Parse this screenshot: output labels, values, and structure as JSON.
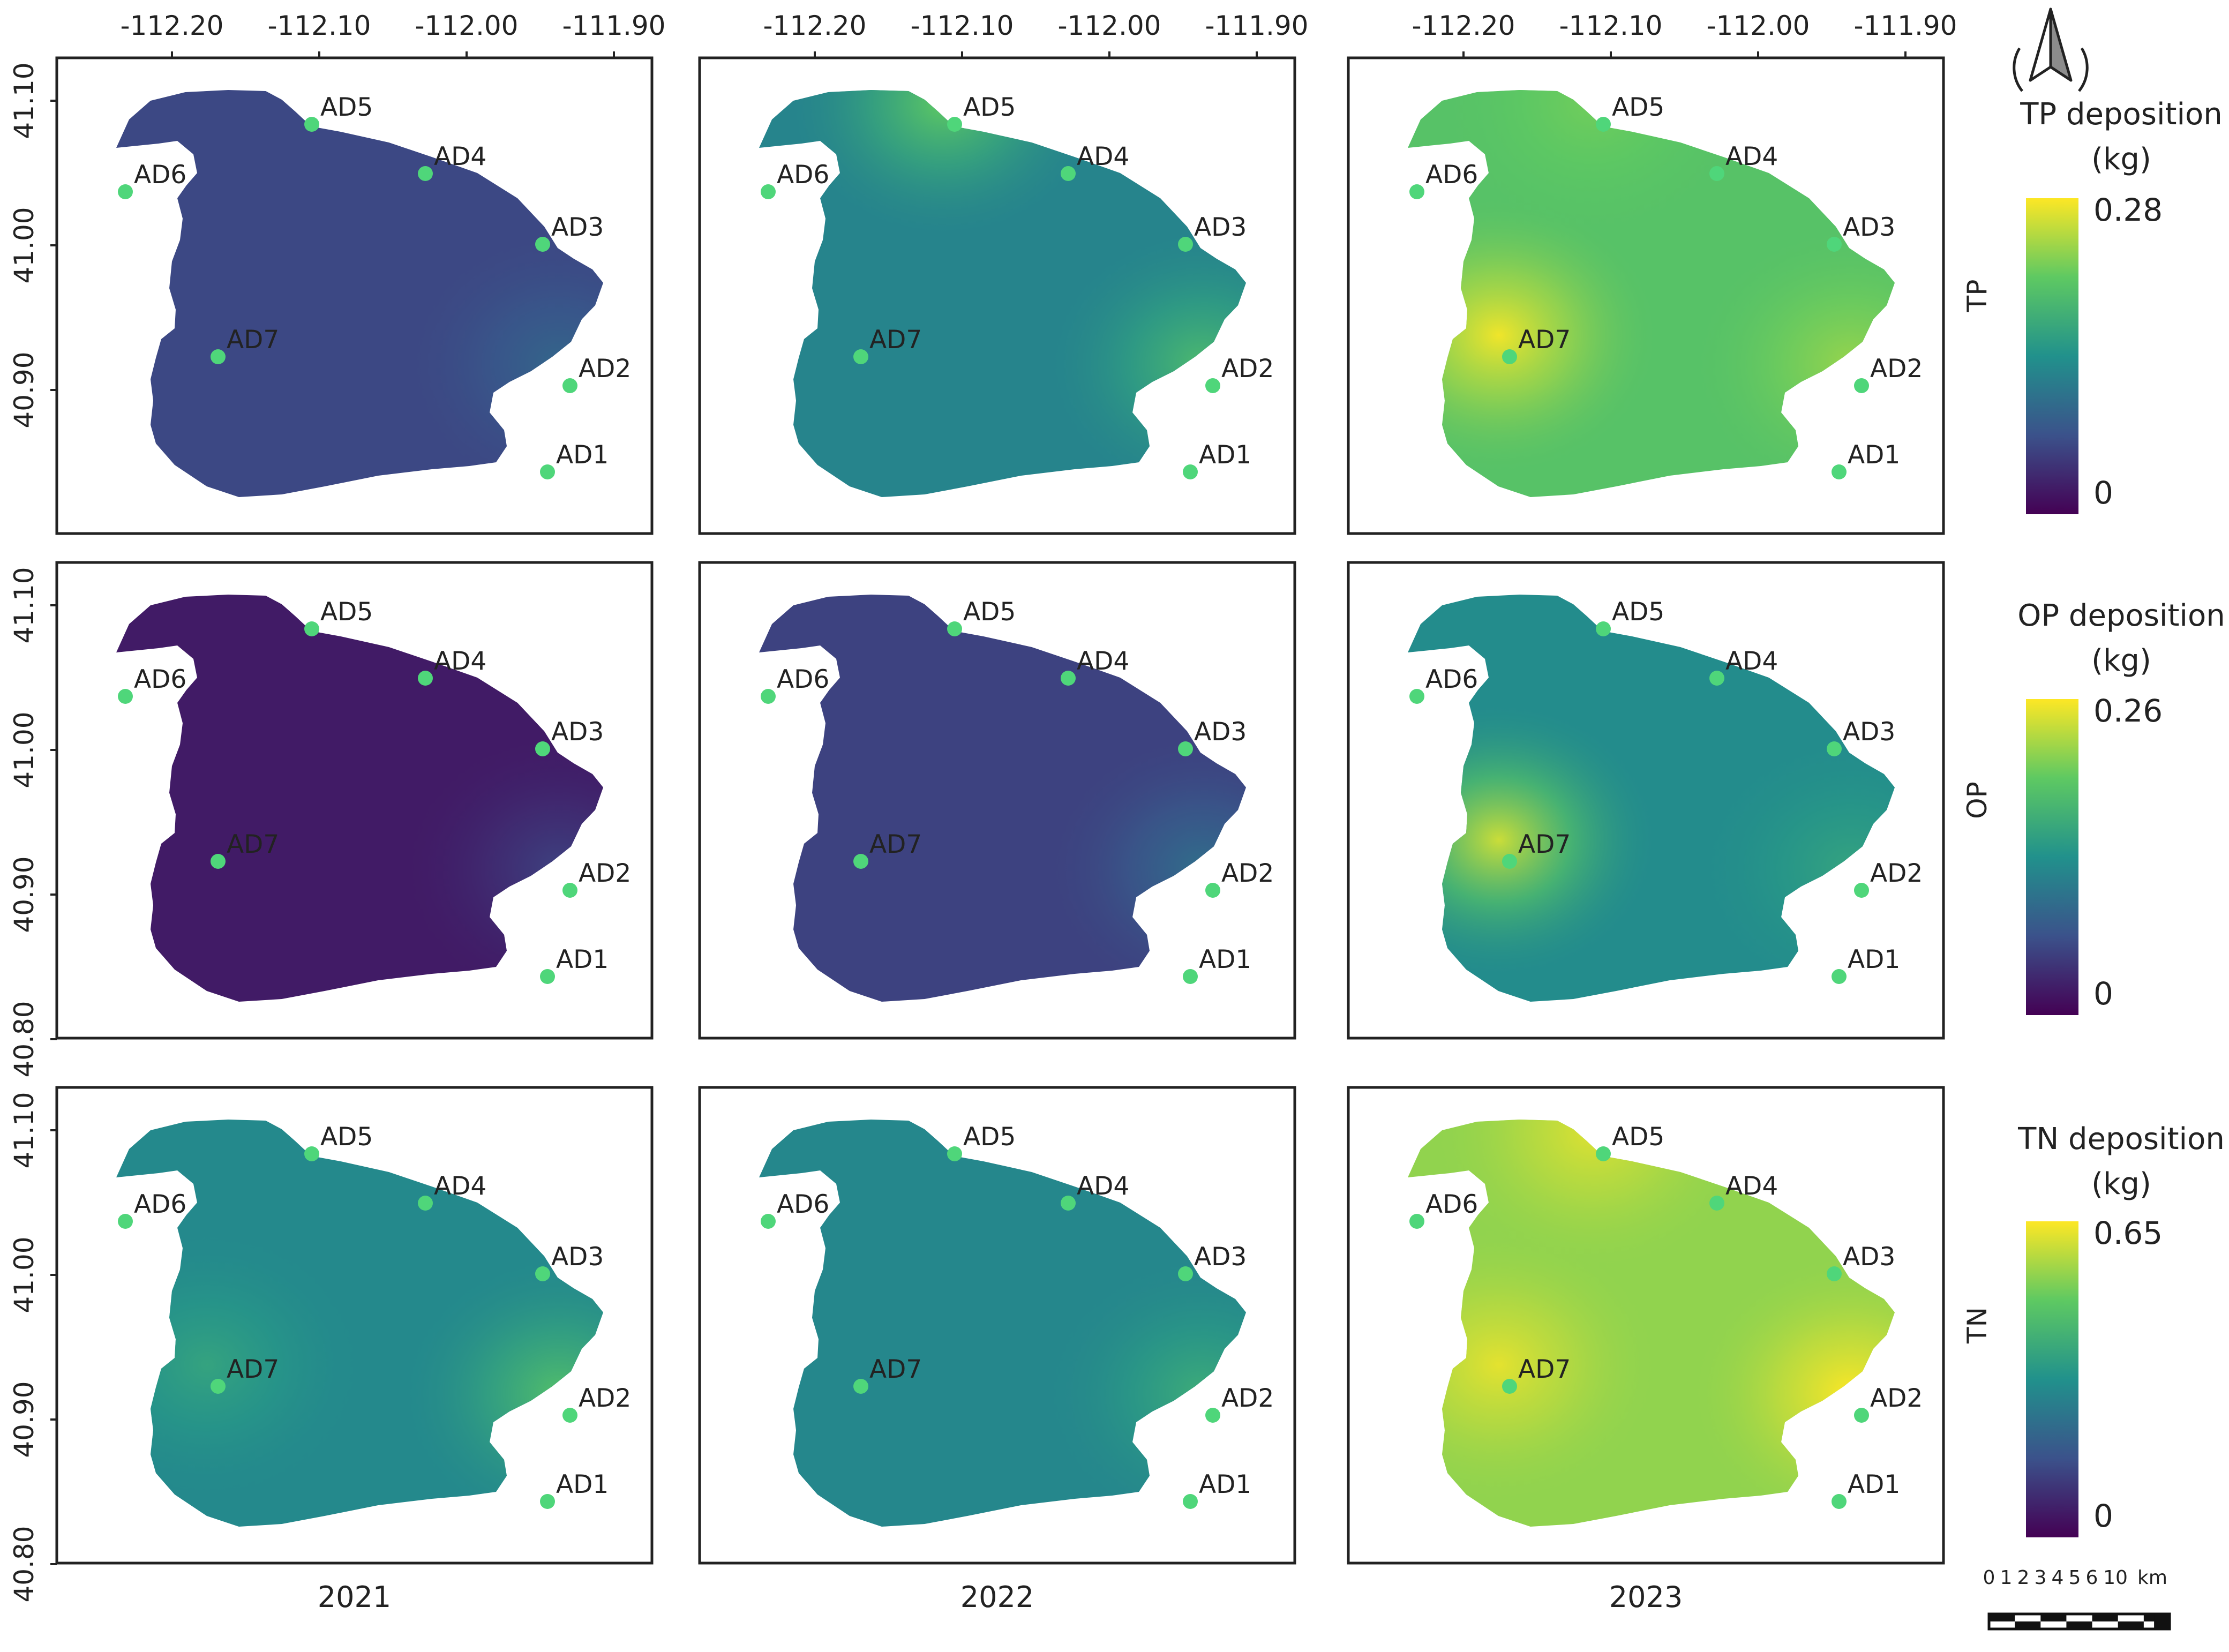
{
  "figure": {
    "years": [
      "2021",
      "2022",
      "2023"
    ],
    "longitude_ticks": [
      "-112.20",
      "-112.10",
      "-112.00",
      "-111.90"
    ],
    "latitude_ticks": [
      "41.10",
      "41.00",
      "40.90",
      "40.80"
    ],
    "rows": [
      {
        "id": "tp",
        "label": "TP",
        "legend_title_line1": "TP deposition",
        "legend_title_line2": "(kg)",
        "legend_max": "0.28",
        "legend_min": "0",
        "panel_levels": [
          0.22,
          0.45,
          0.72
        ],
        "hotspots": [
          [
            {
              "site": "AD2",
              "level": 0.33
            }
          ],
          [
            {
              "site": "AD2",
              "level": 0.68
            },
            {
              "site": "AD5",
              "level": 0.75
            }
          ],
          [
            {
              "site": "AD7",
              "level": 0.98
            },
            {
              "site": "AD2",
              "level": 0.84
            },
            {
              "site": "AD5",
              "level": 0.78
            }
          ]
        ]
      },
      {
        "id": "op",
        "label": "OP",
        "legend_title_line1": "OP deposition",
        "legend_title_line2": "(kg)",
        "legend_max": "0.26",
        "legend_min": "0",
        "panel_levels": [
          0.08,
          0.2,
          0.48
        ],
        "hotspots": [
          [
            {
              "site": "AD2",
              "level": 0.2
            }
          ],
          [
            {
              "site": "AD2",
              "level": 0.36
            }
          ],
          [
            {
              "site": "AD7",
              "level": 0.92
            },
            {
              "site": "AD2",
              "level": 0.58
            }
          ]
        ]
      },
      {
        "id": "tn",
        "label": "TN",
        "legend_title_line1": "TN deposition",
        "legend_title_line2": "(kg)",
        "legend_max": "0.65",
        "legend_min": "0",
        "panel_levels": [
          0.47,
          0.46,
          0.83
        ],
        "hotspots": [
          [
            {
              "site": "AD2",
              "level": 0.7
            },
            {
              "site": "AD7",
              "level": 0.58
            }
          ],
          [
            {
              "site": "AD2",
              "level": 0.62
            }
          ],
          [
            {
              "site": "AD2",
              "level": 1.0
            },
            {
              "site": "AD7",
              "level": 0.96
            },
            {
              "site": "AD5",
              "level": 0.95
            }
          ]
        ]
      }
    ],
    "sites": [
      "AD1",
      "AD2",
      "AD3",
      "AD4",
      "AD5",
      "AD6",
      "AD7"
    ],
    "colormap": [
      "#440154",
      "#3b528b",
      "#21918c",
      "#5ec962",
      "#fde725"
    ],
    "site_marker_color": "#4fd67a",
    "north_arrow_icon": "north-arrow-icon",
    "scale_bar": {
      "ticks": [
        "0",
        "1",
        "2",
        "3",
        "4",
        "5",
        "6",
        "10"
      ],
      "unit": "km"
    }
  }
}
